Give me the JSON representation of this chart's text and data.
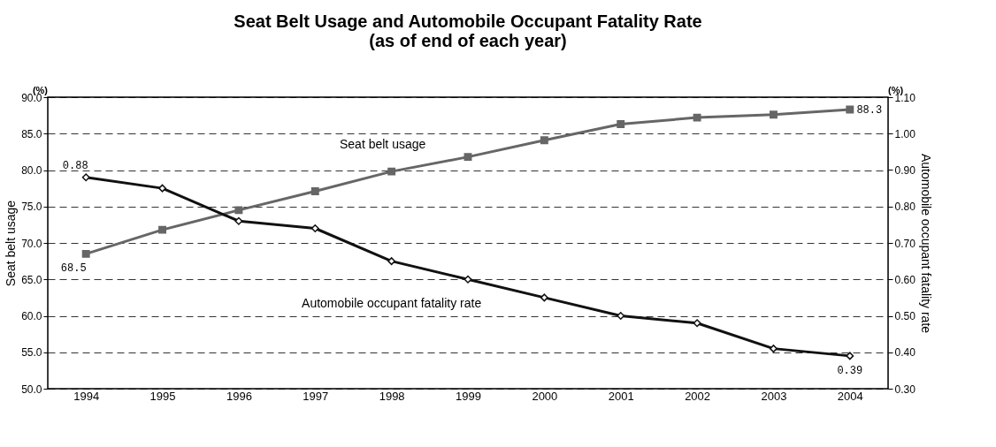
{
  "chart_data": {
    "type": "line",
    "title": [
      "Seat Belt Usage and Automobile Occupant Fatality Rate",
      "(as of end of each year)"
    ],
    "ylabel": "Seat belt usage",
    "y2label": "Automobile occupant fatality rate",
    "categories": [
      "1994",
      "1995",
      "1996",
      "1997",
      "1998",
      "1999",
      "2000",
      "2001",
      "2002",
      "2003",
      "2004"
    ],
    "series": [
      {
        "name": "Seat belt usage",
        "color": "#666666",
        "marker": "square",
        "values": [
          68.5,
          71.8,
          74.5,
          77.1,
          79.8,
          81.8,
          84.1,
          86.3,
          87.2,
          87.6,
          88.3
        ],
        "value_labels": [
          "68.5",
          null,
          null,
          null,
          null,
          null,
          null,
          null,
          null,
          null,
          "88.3"
        ]
      },
      {
        "name": "Automobile occupant fatality rate",
        "color": "#111111",
        "marker": "diamond",
        "axis": "y2",
        "values": [
          0.88,
          0.85,
          0.76,
          0.74,
          0.65,
          0.6,
          0.55,
          0.5,
          0.48,
          0.41,
          0.39
        ],
        "value_labels": [
          "0.88",
          null,
          null,
          null,
          null,
          null,
          null,
          null,
          null,
          null,
          "0.39"
        ]
      }
    ],
    "ylim": [
      50,
      90
    ],
    "yticks": [
      {
        "value": 50,
        "label": "50.0"
      },
      {
        "value": 55,
        "label": "55.0"
      },
      {
        "value": 60,
        "label": "60.0"
      },
      {
        "value": 65,
        "label": "65.0"
      },
      {
        "value": 70,
        "label": "70.0"
      },
      {
        "value": 75,
        "label": "75.0"
      },
      {
        "value": 80,
        "label": "80.0"
      },
      {
        "value": 85,
        "label": "85.0"
      },
      {
        "value": 90,
        "label": "90.0"
      }
    ],
    "y2lim": [
      0.3,
      1.1
    ],
    "y2ticks": [
      {
        "value": 0.3,
        "label": "0.30"
      },
      {
        "value": 0.4,
        "label": "0.40"
      },
      {
        "value": 0.5,
        "label": "0.50"
      },
      {
        "value": 0.6,
        "label": "0.60"
      },
      {
        "value": 0.7,
        "label": "0.70"
      },
      {
        "value": 0.8,
        "label": "0.80"
      },
      {
        "value": 0.9,
        "label": "0.90"
      },
      {
        "value": 1.0,
        "label": "1.00"
      },
      {
        "value": 1.1,
        "label": "1.10"
      }
    ],
    "annotations": [
      "(%)",
      "(%)"
    ],
    "grid": "y",
    "line_style": "solid"
  }
}
